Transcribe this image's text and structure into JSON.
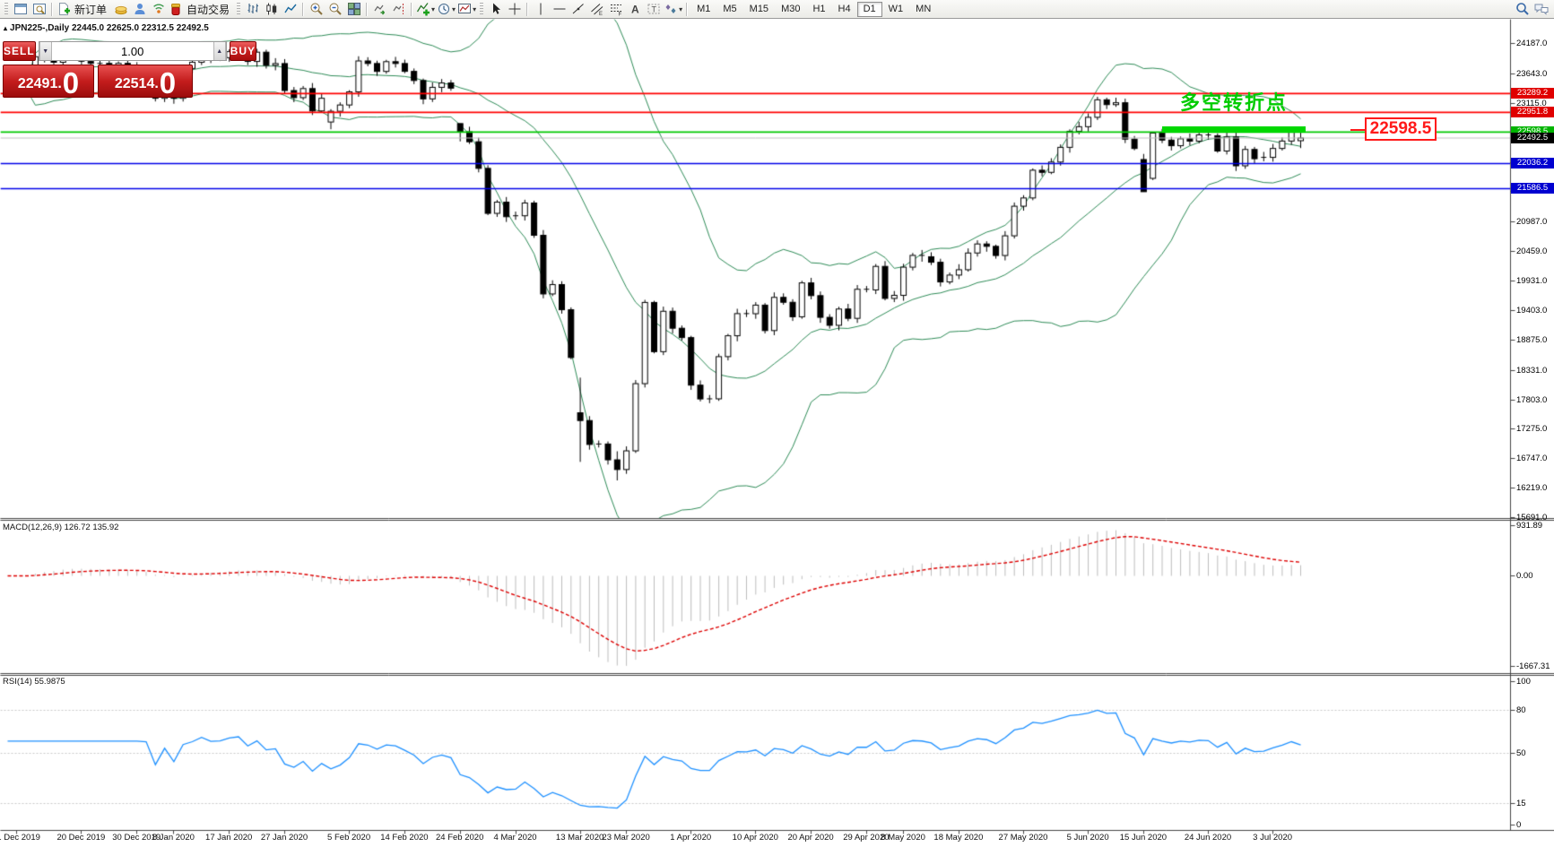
{
  "toolbar": {
    "new_order_label": "新订单",
    "auto_trading_label": "自动交易",
    "timeframes": [
      "M1",
      "M5",
      "M15",
      "M30",
      "H1",
      "H4",
      "D1",
      "W1",
      "MN"
    ],
    "active_timeframe": "D1"
  },
  "trade_panel": {
    "sell_label": "SELL",
    "buy_label": "BUY",
    "volume": "1.00",
    "sell_price_main": "22491.",
    "sell_price_big": "0",
    "buy_price_main": "22514.",
    "buy_price_big": "0"
  },
  "chart": {
    "symbol_info": "JPN225-,Daily  22445.0 22625.0 22312.5 22492.5",
    "macd_label": "MACD(12,26,9) 126.72 135.92",
    "rsi_label": "RSI(14) 55.9875",
    "annotation_text": "多空转折点",
    "price_tag_text": "22598.5"
  },
  "chart_data": {
    "type": "candlestick",
    "symbol": "JPN225-",
    "timeframe": "Daily",
    "ohlc_display": {
      "open": 22445.0,
      "high": 22625.0,
      "low": 22312.5,
      "close": 22492.5
    },
    "ylim": [
      15675,
      24620
    ],
    "y_ticks": [
      24187,
      23643,
      23115,
      22587,
      22059,
      21531,
      20987,
      20459,
      19931,
      19403,
      18875,
      18331,
      17803,
      17275,
      16747,
      16219,
      15691
    ],
    "levels": [
      {
        "price": 23289.2,
        "color": "#FF0000",
        "badge": "#E00000"
      },
      {
        "price": 22951.8,
        "color": "#FF0000",
        "badge": "#E00000"
      },
      {
        "price": 22598.5,
        "color": "#00C800",
        "badge": "#00B400"
      },
      {
        "price": 22036.2,
        "color": "#0000E8",
        "badge": "#0000D0"
      },
      {
        "price": 21586.5,
        "color": "#0000E8",
        "badge": "#0000D0"
      }
    ],
    "bid_price": 22492.5,
    "bollinger": {
      "period": 20,
      "deviation": 2,
      "color": "#2E8B57"
    },
    "first_open": 23400,
    "candles_close": [
      23430,
      23390,
      23420,
      23950,
      23930,
      23850,
      24040,
      23950,
      23870,
      23830,
      23830,
      23790,
      23830,
      23780,
      23660,
      23650,
      23205,
      23576,
      23205,
      23740,
      23851,
      24025,
      23917,
      23933,
      24041,
      24084,
      23865,
      24031,
      23795,
      23827,
      23344,
      23216,
      23379,
      22978,
      23205,
      22972,
      23085,
      23320,
      23874,
      23828,
      23686,
      23861,
      23828,
      23687,
      23523,
      23194,
      23401,
      23479,
      23387,
      22605,
      22426,
      21949,
      21143,
      21344,
      21083,
      21100,
      21329,
      20750,
      19699,
      19867,
      19416,
      18560,
      17431,
      17002,
      17011,
      16727,
      16553,
      16888,
      18092,
      19547,
      18665,
      19389,
      19085,
      18917,
      18065,
      17818,
      17820,
      18576,
      18950,
      19347,
      19345,
      19499,
      19043,
      19638,
      19550,
      19290,
      19897,
      19669,
      19280,
      19137,
      19429,
      19262,
      19783,
      19771,
      20193,
      19619,
      19674,
      20179,
      20390,
      20366,
      20267,
      19914,
      20037,
      20133,
      20433,
      20595,
      20552,
      20388,
      20741,
      21271,
      21419,
      21916,
      21878,
      22062,
      22326,
      22614,
      22696,
      22864,
      23178,
      23091,
      23125,
      22473,
      22305,
      21531,
      22582,
      22456,
      22355,
      22479,
      22437,
      22549,
      22534,
      22260,
      22512,
      21995,
      22288,
      22122,
      22146,
      22306,
      22439,
      22615,
      22492.5
    ],
    "special_candles": {
      "16": [
        23320,
        23365,
        23148,
        23205
      ],
      "35": [
        22780,
        23010,
        22650,
        22972
      ],
      "49": [
        22752,
        22752,
        22432,
        22605
      ],
      "62": [
        17570,
        18200,
        16690,
        17431
      ],
      "66": [
        16727,
        16880,
        16358,
        16553
      ],
      "123": [
        22108,
        22208,
        21529,
        21531
      ],
      "124": [
        21770,
        22587,
        21740,
        22582
      ],
      "140": [
        22445,
        22625,
        22312.5,
        22492.5
      ]
    },
    "macd": {
      "label": "MACD(12,26,9)",
      "value": 126.72,
      "signal_value": 135.92,
      "params": [
        12,
        26,
        9
      ],
      "scale_ticks": [
        931.89,
        0.0,
        -1667.31
      ],
      "bar_color": "#BCBCBC",
      "signal_color": "#DD0000"
    },
    "rsi": {
      "label": "RSI(14)",
      "value": 55.9875,
      "period": 14,
      "scale_ticks": [
        100,
        80,
        50,
        15,
        0
      ],
      "levels": [
        80,
        50,
        15
      ],
      "color": "#1E90FF"
    },
    "date_labels": [
      {
        "t": "11 Dec 2019",
        "i": 1
      },
      {
        "t": "20 Dec 2019",
        "i": 8
      },
      {
        "t": "30 Dec 2019",
        "i": 14
      },
      {
        "t": "8 Jan 2020",
        "i": 18
      },
      {
        "t": "17 Jan 2020",
        "i": 24
      },
      {
        "t": "27 Jan 2020",
        "i": 30
      },
      {
        "t": "5 Feb 2020",
        "i": 37
      },
      {
        "t": "14 Feb 2020",
        "i": 43
      },
      {
        "t": "24 Feb 2020",
        "i": 49
      },
      {
        "t": "4 Mar 2020",
        "i": 55
      },
      {
        "t": "13 Mar 2020",
        "i": 62
      },
      {
        "t": "23 Mar 2020",
        "i": 67
      },
      {
        "t": "1 Apr 2020",
        "i": 74
      },
      {
        "t": "10 Apr 2020",
        "i": 81
      },
      {
        "t": "20 Apr 2020",
        "i": 87
      },
      {
        "t": "29 Apr 2020",
        "i": 93
      },
      {
        "t": "8 May 2020",
        "i": 97
      },
      {
        "t": "18 May 2020",
        "i": 103
      },
      {
        "t": "27 May 2020",
        "i": 110
      },
      {
        "t": "5 Jun 2020",
        "i": 117
      },
      {
        "t": "15 Jun 2020",
        "i": 123
      },
      {
        "t": "24 Jun 2020",
        "i": 130
      },
      {
        "t": "3 Jul 2020",
        "i": 137
      }
    ],
    "annotation": {
      "text": "多空转折点",
      "color": "#00CC00"
    },
    "price_tag": {
      "text": "22598.5",
      "color": "#FF1A1A"
    },
    "highlight_line": {
      "price": 22640,
      "from_candle": 125,
      "to_candle": 140.6,
      "color": "#00D800"
    }
  }
}
